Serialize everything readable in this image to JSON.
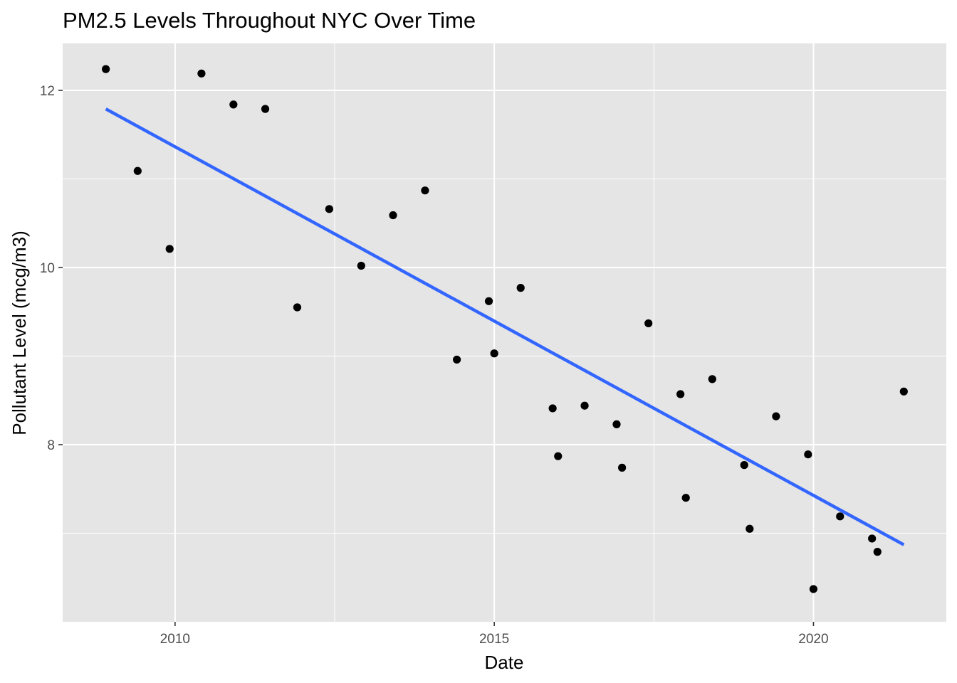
{
  "chart_data": {
    "type": "scatter",
    "title": "PM2.5 Levels Throughout NYC Over Time",
    "xlabel": "Date",
    "ylabel": "Pollutant Level (mcg/m3)",
    "x_axis": {
      "type": "date",
      "range": [
        "2008-03-29",
        "2022-01-30"
      ],
      "ticks": [
        "2010",
        "2015",
        "2020"
      ]
    },
    "y_axis": {
      "range": [
        6.0,
        12.53
      ],
      "ticks": [
        "8",
        "10",
        "12"
      ]
    },
    "grid": true,
    "legend": "none",
    "colors": {
      "panel": "#e5e5e5",
      "grid": "#ffffff",
      "points": "#000000",
      "trend_line": "#3366ff",
      "tick_label": "#4d4d4d"
    },
    "series": [
      {
        "points": [
          {
            "x": "2008-12-01",
            "y": 12.24
          },
          {
            "x": "2009-06-01",
            "y": 11.09
          },
          {
            "x": "2009-12-01",
            "y": 10.21
          },
          {
            "x": "2010-06-01",
            "y": 12.19
          },
          {
            "x": "2010-12-01",
            "y": 11.84
          },
          {
            "x": "2011-06-01",
            "y": 11.79
          },
          {
            "x": "2011-12-01",
            "y": 9.55
          },
          {
            "x": "2012-06-01",
            "y": 10.66
          },
          {
            "x": "2012-12-01",
            "y": 10.02
          },
          {
            "x": "2013-06-01",
            "y": 10.59
          },
          {
            "x": "2013-12-01",
            "y": 10.87
          },
          {
            "x": "2014-06-01",
            "y": 8.96
          },
          {
            "x": "2014-12-01",
            "y": 9.62
          },
          {
            "x": "2015-01-01",
            "y": 9.03
          },
          {
            "x": "2015-06-01",
            "y": 9.77
          },
          {
            "x": "2015-12-01",
            "y": 8.41
          },
          {
            "x": "2016-01-01",
            "y": 7.87
          },
          {
            "x": "2016-06-01",
            "y": 8.44
          },
          {
            "x": "2016-12-01",
            "y": 8.23
          },
          {
            "x": "2017-01-01",
            "y": 7.74
          },
          {
            "x": "2017-06-01",
            "y": 9.37
          },
          {
            "x": "2017-12-01",
            "y": 8.57
          },
          {
            "x": "2018-01-01",
            "y": 7.4
          },
          {
            "x": "2018-06-01",
            "y": 8.74
          },
          {
            "x": "2018-12-01",
            "y": 7.77
          },
          {
            "x": "2019-01-01",
            "y": 7.05
          },
          {
            "x": "2019-06-01",
            "y": 8.32
          },
          {
            "x": "2019-12-01",
            "y": 7.89
          },
          {
            "x": "2020-01-01",
            "y": 6.37
          },
          {
            "x": "2020-06-01",
            "y": 7.19
          },
          {
            "x": "2020-12-01",
            "y": 6.94
          },
          {
            "x": "2021-01-01",
            "y": 6.79
          },
          {
            "x": "2021-06-01",
            "y": 8.6
          }
        ]
      }
    ],
    "trend_line": {
      "method": "linear",
      "from": {
        "x": "2008-12-01",
        "y": 11.79
      },
      "to": {
        "x": "2021-06-01",
        "y": 6.87
      }
    }
  }
}
